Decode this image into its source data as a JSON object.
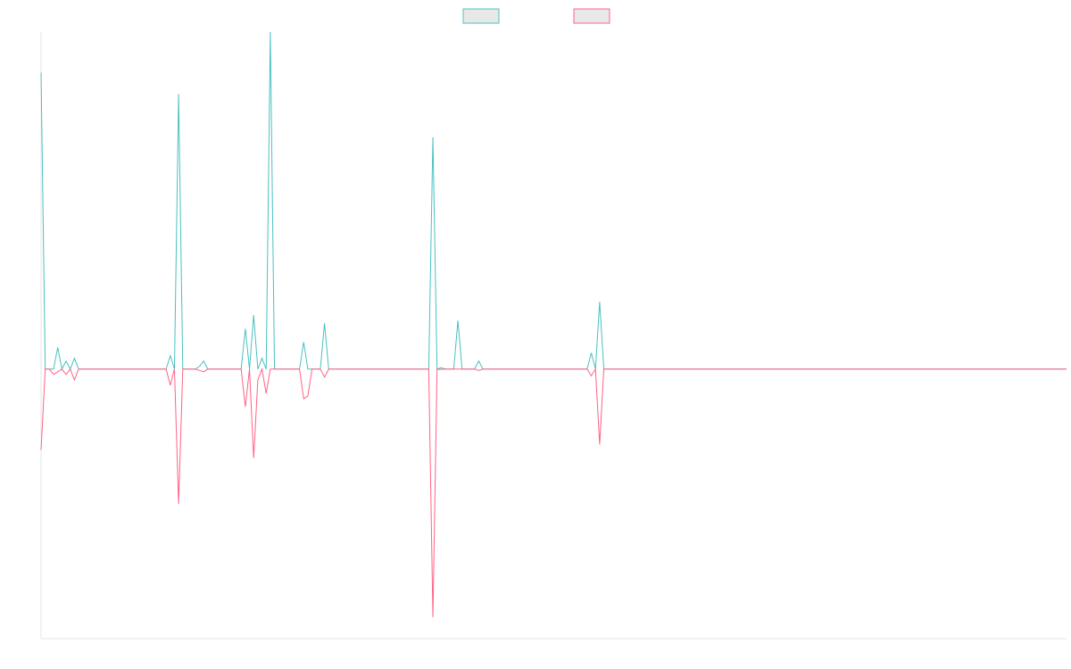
{
  "chart_data": {
    "type": "line",
    "title": "",
    "xlabel": "",
    "ylabel": "",
    "grid": false,
    "legend": "top-center",
    "ylim": [
      -1,
      1.25
    ],
    "x_count": 247,
    "series": [
      {
        "color": "#4bc0c0",
        "baseline": 0.0,
        "points": [
          [
            0,
            1.1
          ],
          [
            1,
            0
          ],
          [
            2,
            0
          ],
          [
            3,
            0
          ],
          [
            4,
            0.08
          ],
          [
            5,
            0
          ],
          [
            6,
            0.03
          ],
          [
            7,
            0
          ],
          [
            8,
            0.04
          ],
          [
            9,
            0
          ],
          [
            30,
            0
          ],
          [
            31,
            0.05
          ],
          [
            32,
            0
          ],
          [
            33,
            1.02
          ],
          [
            34,
            0
          ],
          [
            37,
            0
          ],
          [
            38,
            0.01
          ],
          [
            39,
            0.03
          ],
          [
            40,
            0
          ],
          [
            48,
            0
          ],
          [
            49,
            0.15
          ],
          [
            50,
            0
          ],
          [
            51,
            0.2
          ],
          [
            52,
            0
          ],
          [
            53,
            0.04
          ],
          [
            54,
            0
          ],
          [
            55,
            1.25
          ],
          [
            56,
            0
          ],
          [
            62,
            0
          ],
          [
            63,
            0.1
          ],
          [
            64,
            0
          ],
          [
            67,
            0
          ],
          [
            68,
            0.17
          ],
          [
            69,
            0
          ],
          [
            93,
            0
          ],
          [
            94,
            0.86
          ],
          [
            95,
            0
          ],
          [
            96,
            0.005
          ],
          [
            97,
            0
          ],
          [
            99,
            0
          ],
          [
            100,
            0.18
          ],
          [
            101,
            0
          ],
          [
            104,
            0
          ],
          [
            105,
            0.03
          ],
          [
            106,
            0
          ],
          [
            131,
            0
          ],
          [
            132,
            0.06
          ],
          [
            133,
            0
          ],
          [
            134,
            0.25
          ],
          [
            135,
            0
          ],
          [
            246,
            0
          ]
        ]
      },
      {
        "color": "#ff6384",
        "baseline": 0.0,
        "points": [
          [
            0,
            -0.3
          ],
          [
            1,
            0
          ],
          [
            2,
            0
          ],
          [
            3,
            -0.02
          ],
          [
            4,
            -0.01
          ],
          [
            5,
            0
          ],
          [
            6,
            -0.02
          ],
          [
            7,
            0
          ],
          [
            8,
            -0.04
          ],
          [
            9,
            0
          ],
          [
            30,
            0
          ],
          [
            31,
            -0.06
          ],
          [
            32,
            0
          ],
          [
            33,
            -0.5
          ],
          [
            34,
            0
          ],
          [
            37,
            0
          ],
          [
            38,
            -0.005
          ],
          [
            39,
            -0.01
          ],
          [
            40,
            0
          ],
          [
            48,
            0
          ],
          [
            49,
            -0.14
          ],
          [
            50,
            0
          ],
          [
            51,
            -0.33
          ],
          [
            52,
            -0.04
          ],
          [
            53,
            0
          ],
          [
            54,
            -0.09
          ],
          [
            55,
            0
          ],
          [
            62,
            0
          ],
          [
            63,
            -0.11
          ],
          [
            64,
            -0.1
          ],
          [
            65,
            0
          ],
          [
            67,
            0
          ],
          [
            68,
            -0.03
          ],
          [
            69,
            0
          ],
          [
            93,
            0
          ],
          [
            94,
            -0.92
          ],
          [
            95,
            0
          ],
          [
            96,
            -0.001
          ],
          [
            97,
            0
          ],
          [
            104,
            0
          ],
          [
            105,
            -0.005
          ],
          [
            106,
            0
          ],
          [
            131,
            0
          ],
          [
            132,
            -0.025
          ],
          [
            133,
            0
          ],
          [
            134,
            -0.28
          ],
          [
            135,
            0
          ],
          [
            246,
            0
          ]
        ]
      }
    ]
  }
}
